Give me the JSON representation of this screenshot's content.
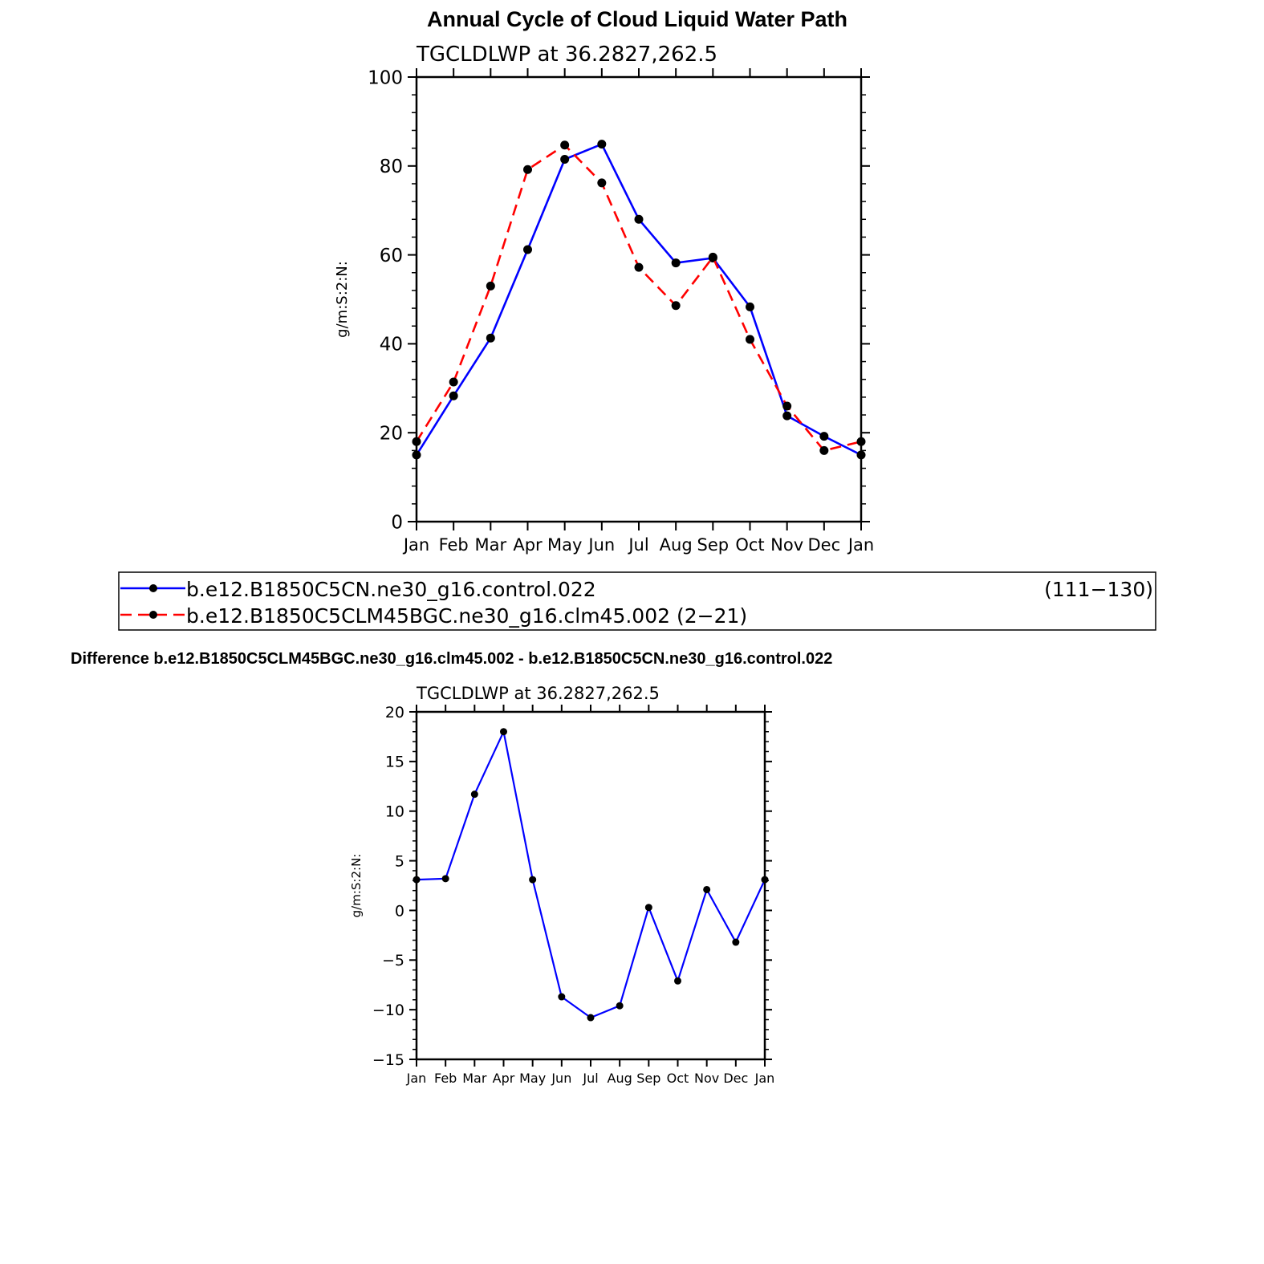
{
  "page": {
    "main_title": "Annual Cycle of Cloud Liquid Water Path",
    "diff_title": "Difference b.e12.B1850C5CLM45BGC.ne30_g16.clm45.002 - b.e12.B1850C5CN.ne30_g16.control.022"
  },
  "legend": {
    "entries": [
      {
        "label": "b.e12.B1850C5CN.ne30_g16.control.022",
        "suffix": "(111−130)",
        "color": "#0000ff",
        "dash": "solid"
      },
      {
        "label": "b.e12.B1850C5CLM45BGC.ne30_g16.clm45.002 (2−21)",
        "suffix": "",
        "color": "#ff0000",
        "dash": "dashed"
      }
    ]
  },
  "chart_data": [
    {
      "type": "line",
      "subtitle": "TGCLDLWP  at  36.2827,262.5",
      "ylabel": "g/m:S:2:N:",
      "xlabel": "",
      "categories": [
        "Jan",
        "Feb",
        "Mar",
        "Apr",
        "May",
        "Jun",
        "Jul",
        "Aug",
        "Sep",
        "Oct",
        "Nov",
        "Dec",
        "Jan"
      ],
      "ylim": [
        0,
        100
      ],
      "yticks": [
        0,
        20,
        40,
        60,
        80,
        100
      ],
      "ytick_labels": [
        "0",
        "20",
        "40",
        "60",
        "80",
        "100"
      ],
      "grid": false,
      "series": [
        {
          "values": [
            15,
            28.3,
            41.3,
            61.2,
            81.5,
            84.9,
            68,
            58.2,
            59.3,
            48.3,
            23.8,
            19.2,
            15
          ],
          "color": "#0000ff",
          "dash": "solid"
        },
        {
          "values": [
            18,
            31.4,
            53,
            79.2,
            84.7,
            76.2,
            57.2,
            48.6,
            59.5,
            41,
            26,
            16,
            18
          ],
          "color": "#ff0000",
          "dash": "dashed"
        }
      ]
    },
    {
      "type": "line",
      "subtitle": "TGCLDLWP  at  36.2827,262.5",
      "ylabel": "g/m:S:2:N:",
      "xlabel": "",
      "categories": [
        "Jan",
        "Feb",
        "Mar",
        "Apr",
        "May",
        "Jun",
        "Jul",
        "Aug",
        "Sep",
        "Oct",
        "Nov",
        "Dec",
        "Jan"
      ],
      "ylim": [
        -15,
        20
      ],
      "yticks": [
        -15,
        -10,
        -5,
        0,
        5,
        10,
        15,
        20
      ],
      "ytick_labels": [
        "−15",
        "−10",
        "−5",
        "0",
        "5",
        "10",
        "15",
        "20"
      ],
      "grid": false,
      "series": [
        {
          "values": [
            3.1,
            3.2,
            11.7,
            18,
            3.1,
            -8.7,
            -10.8,
            -9.6,
            0.3,
            -7.1,
            2.1,
            -3.2,
            3.1
          ],
          "color": "#0000ff",
          "dash": "solid"
        }
      ]
    }
  ]
}
